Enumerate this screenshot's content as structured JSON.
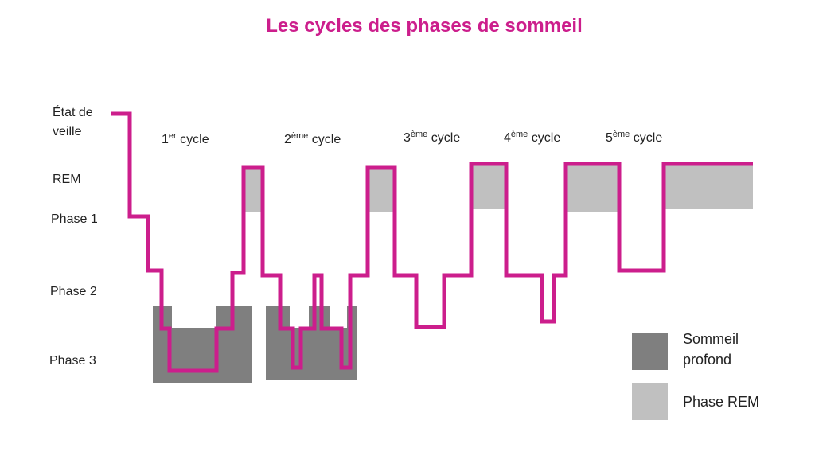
{
  "colors": {
    "hypnogram": "#cc1e8c",
    "deep_sleep": "#7f7f7f",
    "rem_phase": "#c0c0c0",
    "title": "#cc1e8c",
    "text": "#222222"
  },
  "chart_data": {
    "type": "line",
    "title": "Les cycles des phases de sommeil",
    "xlabel": "",
    "ylabel": "",
    "grid": false,
    "legend_position": "bottom-right",
    "levels": [
      {
        "key": "wake",
        "label_lines": [
          "État de",
          "veille"
        ]
      },
      {
        "key": "rem",
        "label_lines": [
          "REM"
        ]
      },
      {
        "key": "phase1",
        "label_lines": [
          "Phase 1"
        ]
      },
      {
        "key": "phase2",
        "label_lines": [
          "Phase 2"
        ]
      },
      {
        "key": "phase3",
        "label_lines": [
          "Phase 3"
        ]
      }
    ],
    "cycles": [
      {
        "num": "1",
        "sup": "er",
        "word": " cycle"
      },
      {
        "num": "2",
        "sup": "ème",
        "word": " cycle"
      },
      {
        "num": "3",
        "sup": "ème",
        "word": " cycle"
      },
      {
        "num": "4",
        "sup": "ème",
        "word": " cycle"
      },
      {
        "num": "5",
        "sup": "ème",
        "word": " cycle"
      }
    ],
    "hypnogram_steps": [
      {
        "level": "wake",
        "from": 0,
        "to": 0.12
      },
      {
        "level": "phase1",
        "from": 0.12,
        "to": 0.26
      },
      {
        "level": "phase2",
        "from": 0.26,
        "to": 0.36
      },
      {
        "level": "phase3",
        "from": 0.36,
        "to": 0.52
      },
      {
        "level": "phase3",
        "from": 0.52,
        "to": 0.95
      },
      {
        "level": "phase3",
        "from": 0.95,
        "to": 1.15
      },
      {
        "level": "phase2",
        "from": 1.15,
        "to": 1.28
      },
      {
        "level": "rem",
        "from": 1.28,
        "to": 1.5
      },
      {
        "level": "phase2",
        "from": 1.5,
        "to": 1.78
      },
      {
        "level": "phase3",
        "from": 1.78,
        "to": 1.92
      },
      {
        "level": "phase2",
        "from": 1.92,
        "to": 2.04
      },
      {
        "level": "phase3",
        "from": 2.04,
        "to": 2.18
      },
      {
        "level": "phase2",
        "from": 2.18,
        "to": 2.36
      },
      {
        "level": "rem",
        "from": 2.36,
        "to": 2.56
      },
      {
        "level": "phase2",
        "from": 2.56,
        "to": 2.82
      },
      {
        "level": "phase2",
        "from": 2.82,
        "to": 3.02
      },
      {
        "level": "phase2",
        "from": 3.02,
        "to": 3.26
      },
      {
        "level": "rem",
        "from": 3.26,
        "to": 3.54
      },
      {
        "level": "phase2",
        "from": 3.54,
        "to": 3.84
      },
      {
        "level": "phase2",
        "from": 3.84,
        "to": 3.96
      },
      {
        "level": "phase2",
        "from": 3.96,
        "to": 4.1
      },
      {
        "level": "rem",
        "from": 4.1,
        "to": 4.46
      },
      {
        "level": "phase2",
        "from": 4.46,
        "to": 4.8
      },
      {
        "level": "rem",
        "from": 4.8,
        "to": 5.42
      }
    ],
    "legend": [
      {
        "lines": [
          "Sommeil",
          "profond"
        ],
        "swatch": "deep_sleep"
      },
      {
        "lines": [
          "Phase REM"
        ],
        "swatch": "rem_phase"
      }
    ]
  }
}
